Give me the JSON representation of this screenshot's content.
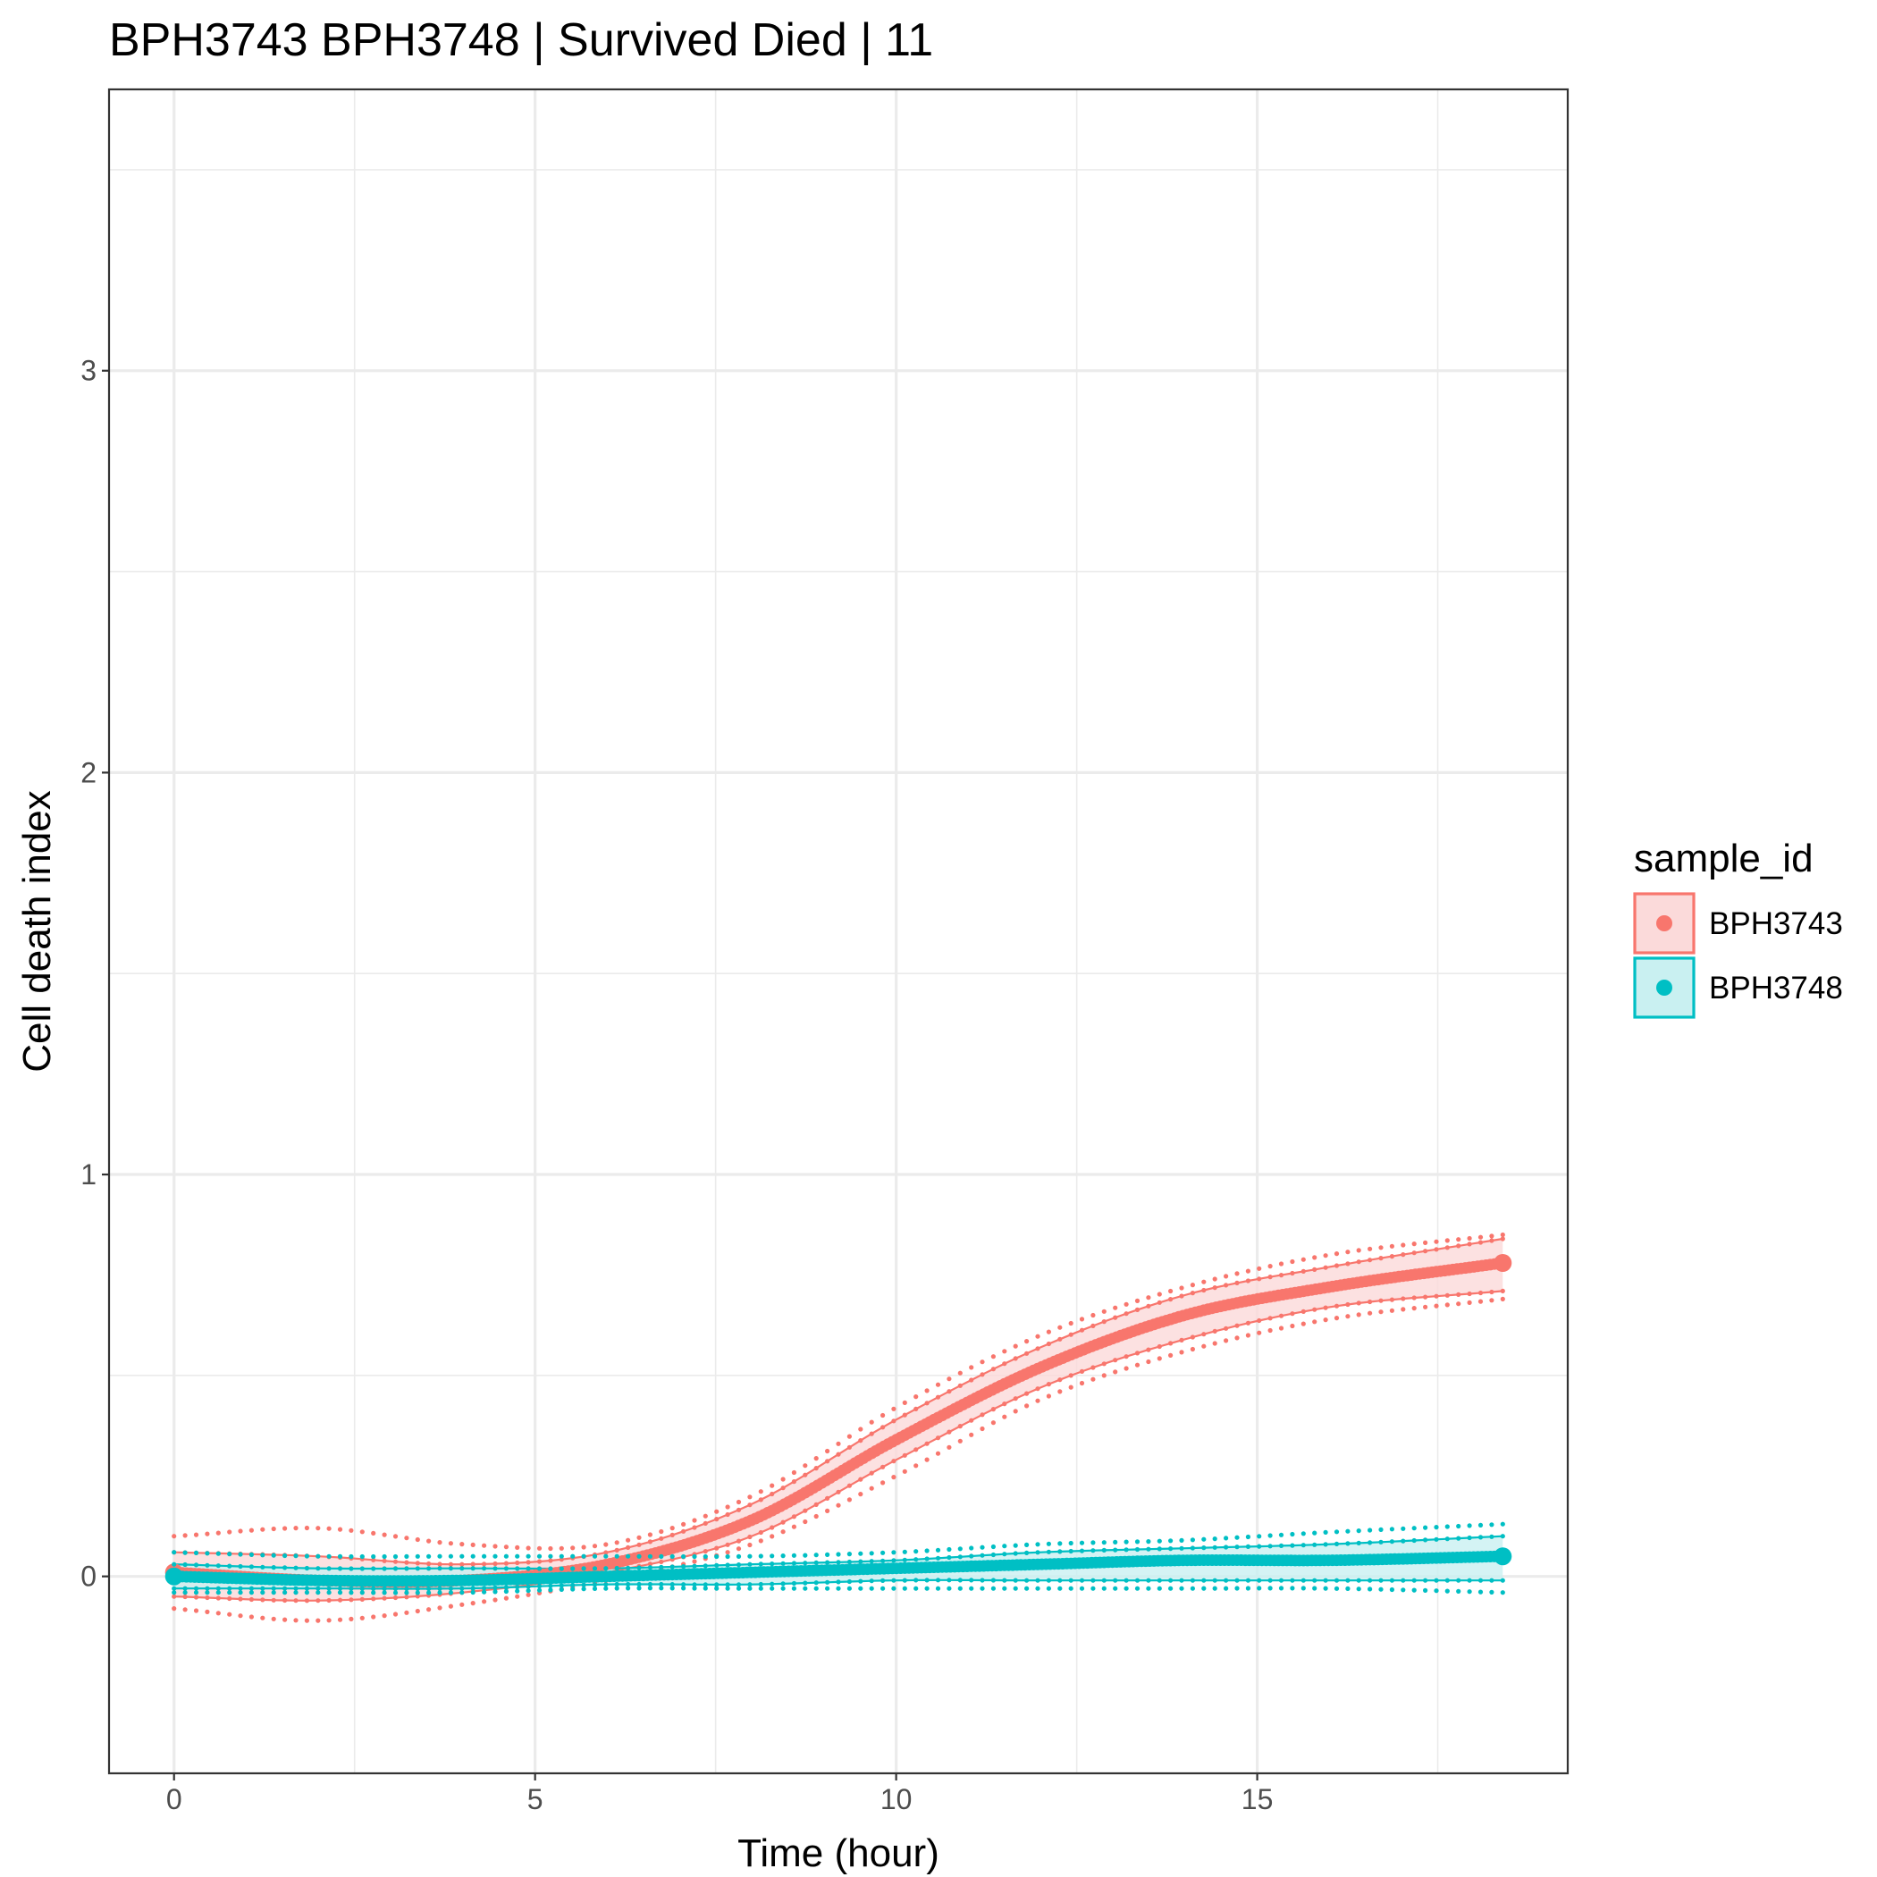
{
  "chart_data": {
    "type": "line",
    "title": "BPH3743 BPH3748 | Survived Died | 11",
    "xlabel": "Time (hour)",
    "ylabel": "Cell death index",
    "xlim": [
      -0.9,
      19.3
    ],
    "ylim": [
      -0.49,
      3.7
    ],
    "x_ticks": [
      0,
      5,
      10,
      15
    ],
    "y_ticks": [
      0,
      1,
      2,
      3
    ],
    "x_minor": [
      2.5,
      7.5,
      12.5,
      17.5
    ],
    "y_minor": [
      0.5,
      1.5,
      2.5,
      3.5
    ],
    "grid": true,
    "legend": {
      "title": "sample_id",
      "position": "right",
      "entries": [
        "BPH3743",
        "BPH3748"
      ]
    },
    "colors": {
      "BPH3743": "#F8766D",
      "BPH3748": "#00BFC4",
      "BPH3743_ribbon": "#FBDADA",
      "BPH3748_ribbon": "#C9F0F1",
      "grid": "#EBEBEB",
      "panel_border": "#333333",
      "tick_text": "#4D4D4D"
    },
    "series": [
      {
        "name": "BPH3743",
        "x": [
          0,
          2,
          4,
          6,
          8,
          10,
          12,
          14,
          16,
          18.4
        ],
        "y": [
          0.01,
          -0.01,
          -0.01,
          0.03,
          0.14,
          0.34,
          0.52,
          0.65,
          0.72,
          0.78
        ],
        "lower": [
          -0.05,
          -0.06,
          -0.04,
          0.01,
          0.1,
          0.29,
          0.47,
          0.59,
          0.67,
          0.71
        ],
        "upper": [
          0.06,
          0.05,
          0.03,
          0.06,
          0.18,
          0.39,
          0.57,
          0.7,
          0.77,
          0.84
        ],
        "outer_lower": [
          -0.08,
          -0.11,
          -0.07,
          -0.01,
          0.08,
          0.25,
          0.44,
          0.56,
          0.64,
          0.69
        ],
        "outer_upper": [
          0.1,
          0.12,
          0.08,
          0.08,
          0.2,
          0.42,
          0.6,
          0.72,
          0.8,
          0.85
        ]
      },
      {
        "name": "BPH3748",
        "x": [
          0,
          2,
          4,
          6,
          8,
          10,
          12,
          14,
          16,
          18.4
        ],
        "y": [
          0.0,
          -0.01,
          -0.01,
          0.0,
          0.01,
          0.02,
          0.03,
          0.04,
          0.04,
          0.05
        ],
        "lower": [
          -0.03,
          -0.03,
          -0.03,
          -0.02,
          -0.02,
          -0.01,
          -0.01,
          -0.01,
          -0.01,
          -0.01
        ],
        "upper": [
          0.03,
          0.02,
          0.02,
          0.02,
          0.03,
          0.04,
          0.06,
          0.07,
          0.08,
          0.1
        ],
        "outer_lower": [
          -0.04,
          -0.04,
          -0.04,
          -0.03,
          -0.03,
          -0.03,
          -0.03,
          -0.03,
          -0.03,
          -0.04
        ],
        "outer_upper": [
          0.06,
          0.05,
          0.05,
          0.05,
          0.05,
          0.06,
          0.08,
          0.09,
          0.11,
          0.13
        ]
      }
    ]
  }
}
